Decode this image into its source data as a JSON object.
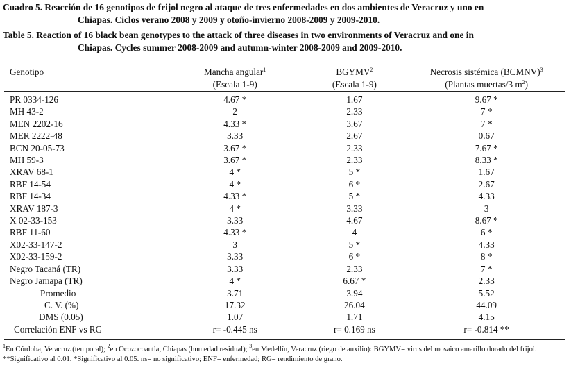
{
  "caption": {
    "es_lead": "Cuadro 5. Reacción de 16 genotipos de frijol negro al ataque de tres enfermedades en dos ambientes de Veracruz y uno en",
    "es_cont": "Chiapas. Ciclos verano 2008 y 2009 y otoño-invierno 2008-2009 y 2009-2010.",
    "en_lead": "Table 5. Reaction of 16 black bean genotypes to the attack of three diseases in two environments of Veracruz and one in",
    "en_cont": "Chiapas. Cycles summer 2008-2009 and autumn-winter 2008-2009 and 2009-2010."
  },
  "headers": {
    "genotype": "Genotipo",
    "col1_title": "Mancha angular",
    "col1_sup": "1",
    "col1_scale": "(Escala 1-9)",
    "col2_title": "BGYMV",
    "col2_sup": "2",
    "col2_scale": "(Escala 1-9)",
    "col3_title": "Necrosis sistémica (BCMNV)",
    "col3_sup": "3",
    "col3_scale_pre": "(Plantas muertas/3 m",
    "col3_scale_sup": "2",
    "col3_scale_post": ")"
  },
  "rows": [
    {
      "genotype": "PR 0334-126",
      "mancha": "4.67 *",
      "bgymv": "1.67",
      "necrosis": "9.67 *"
    },
    {
      "genotype": "MH 43-2",
      "mancha": "2",
      "bgymv": "2.33",
      "necrosis": "7 *"
    },
    {
      "genotype": "MEN 2202-16",
      "mancha": "4.33 *",
      "bgymv": "3.67",
      "necrosis": "7 *"
    },
    {
      "genotype": "MER 2222-48",
      "mancha": "3.33",
      "bgymv": "2.67",
      "necrosis": "0.67"
    },
    {
      "genotype": "BCN 20-05-73",
      "mancha": "3.67 *",
      "bgymv": "2.33",
      "necrosis": "7.67 *"
    },
    {
      "genotype": "MH 59-3",
      "mancha": "3.67 *",
      "bgymv": "2.33",
      "necrosis": "8.33 *"
    },
    {
      "genotype": "XRAV 68-1",
      "mancha": "4 *",
      "bgymv": "5 *",
      "necrosis": "1.67"
    },
    {
      "genotype": "RBF 14-54",
      "mancha": "4 *",
      "bgymv": "6 *",
      "necrosis": "2.67"
    },
    {
      "genotype": "RBF 14-34",
      "mancha": "4.33 *",
      "bgymv": "5 *",
      "necrosis": "4.33"
    },
    {
      "genotype": "XRAV 187-3",
      "mancha": "4 *",
      "bgymv": "3.33",
      "necrosis": "3"
    },
    {
      "genotype": "X 02-33-153",
      "mancha": "3.33",
      "bgymv": "4.67",
      "necrosis": "8.67 *"
    },
    {
      "genotype": "RBF 11-60",
      "mancha": "4.33 *",
      "bgymv": "4",
      "necrosis": "6 *"
    },
    {
      "genotype": "X02-33-147-2",
      "mancha": "3",
      "bgymv": "5 *",
      "necrosis": "4.33"
    },
    {
      "genotype": "X02-33-159-2",
      "mancha": "3.33",
      "bgymv": "6 *",
      "necrosis": "8 *"
    },
    {
      "genotype": "Negro Tacaná (TR)",
      "mancha": "3.33",
      "bgymv": "2.33",
      "necrosis": "7 *"
    },
    {
      "genotype": "Negro Jamapa (TR)",
      "mancha": "4 *",
      "bgymv": "6.67 *",
      "necrosis": "2.33"
    }
  ],
  "summary": [
    {
      "label": "Promedio",
      "mancha": "3.71",
      "bgymv": "3.94",
      "necrosis": "5.52"
    },
    {
      "label": "C. V. (%)",
      "mancha": "17.32",
      "bgymv": "26.04",
      "necrosis": "44.09"
    },
    {
      "label": "DMS (0.05)",
      "mancha": "1.07",
      "bgymv": "1.71",
      "necrosis": "4.15"
    },
    {
      "label": "Correlación ENF vs RG",
      "mancha": "r= -0.445 ns",
      "bgymv": "r= 0.169 ns",
      "necrosis": "r= -0.814 **"
    }
  ],
  "footnote": {
    "sup1": "1",
    "part1": "En Córdoba, Veracruz (temporal); ",
    "sup2": "2",
    "part2": "en Ocozocoautla, Chiapas (humedad residual); ",
    "sup3": "3",
    "part3": "en Medellín, Veracruz (riego de auxilio): BGYMV= virus del mosaico amarillo dorado del frijol. **Significativo al 0.01. *Significativo al 0.05. ns= no significativo; ENF= enfermedad; RG= rendimiento de grano."
  }
}
